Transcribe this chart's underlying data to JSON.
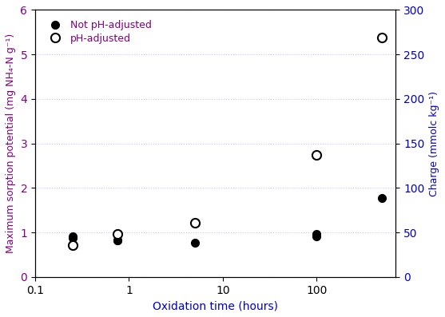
{
  "not_ph_adjusted_x": [
    0.25,
    0.25,
    0.75,
    0.75,
    5,
    100,
    100,
    500
  ],
  "not_ph_adjusted_y": [
    0.92,
    0.87,
    0.82,
    0.83,
    0.77,
    0.92,
    0.97,
    1.77
  ],
  "ph_adjusted_x": [
    0.25,
    0.75,
    5,
    100,
    500
  ],
  "ph_adjusted_y": [
    0.72,
    0.97,
    1.22,
    2.75,
    5.38
  ],
  "title": "",
  "xlabel": "Oxidation time (hours)",
  "ylabel_left": "Maximum sorption potential (mg NH₄-N g⁻¹)",
  "ylabel_right": "Charge (mmolc kg⁻¹)",
  "ylim_left": [
    0,
    6
  ],
  "ylim_right": [
    0,
    300
  ],
  "xlim": [
    0.1,
    700
  ],
  "yticks_left": [
    0,
    1,
    2,
    3,
    4,
    5,
    6
  ],
  "yticks_right": [
    0,
    50,
    100,
    150,
    200,
    250,
    300
  ],
  "xtick_labels": [
    "0.1",
    "1",
    "10",
    "100"
  ],
  "xtick_positions": [
    0.1,
    1,
    10,
    100
  ],
  "legend_labels": [
    "Not pH-adjusted",
    "pH-adjusted"
  ],
  "legend_label_color": "#800080",
  "marker_filled_color": "black",
  "marker_open_color": "black",
  "xlabel_color": "#0000CD",
  "ylabel_left_color": "#800080",
  "ylabel_right_color": "#0000CD",
  "ytick_left_color": "#800080",
  "ytick_right_color": "#0000CD",
  "grid_color": "#c8c8ff",
  "background_color": "#ffffff"
}
